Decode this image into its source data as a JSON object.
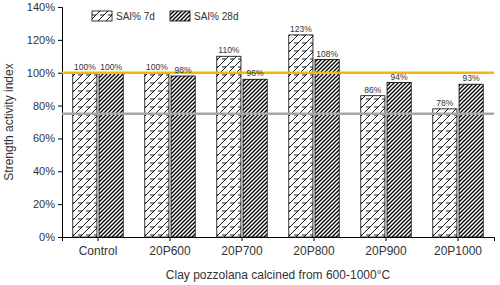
{
  "chart_data": {
    "type": "bar",
    "x_label": "Clay pozzolana calcined from 600-1000°C",
    "y_label": "Strength activity index",
    "categories": [
      "Control",
      "20P600",
      "20P700",
      "20P800",
      "20P900",
      "20P1000"
    ],
    "series": [
      {
        "name": "SAI% 7d",
        "color": "#000000",
        "values": [
          100,
          100,
          110,
          123,
          86,
          78
        ],
        "value_labels": [
          "100%",
          "100%",
          "110%",
          "123%",
          "86%",
          "78%"
        ]
      },
      {
        "name": "SAI% 28d",
        "color": "#000000",
        "values": [
          100,
          98,
          96,
          108,
          94,
          93
        ],
        "value_labels": [
          "100%",
          "98%",
          "96%",
          "108%",
          "94%",
          "93%"
        ]
      }
    ],
    "reference_lines": [
      {
        "value": 100,
        "color": "#f5b800"
      },
      {
        "value": 75,
        "color": "#a6a6a6"
      }
    ],
    "ylim": [
      0,
      140
    ],
    "yticks": [
      {
        "value": 0,
        "label": "0%"
      },
      {
        "value": 20,
        "label": "20%"
      },
      {
        "value": 40,
        "label": "40%"
      },
      {
        "value": 60,
        "label": "60%"
      },
      {
        "value": 80,
        "label": "80%"
      },
      {
        "value": 100,
        "label": "100%"
      },
      {
        "value": 120,
        "label": "120%"
      },
      {
        "value": 140,
        "label": "140%"
      }
    ],
    "grid": false,
    "legend": "upper left",
    "data_labels": true
  }
}
